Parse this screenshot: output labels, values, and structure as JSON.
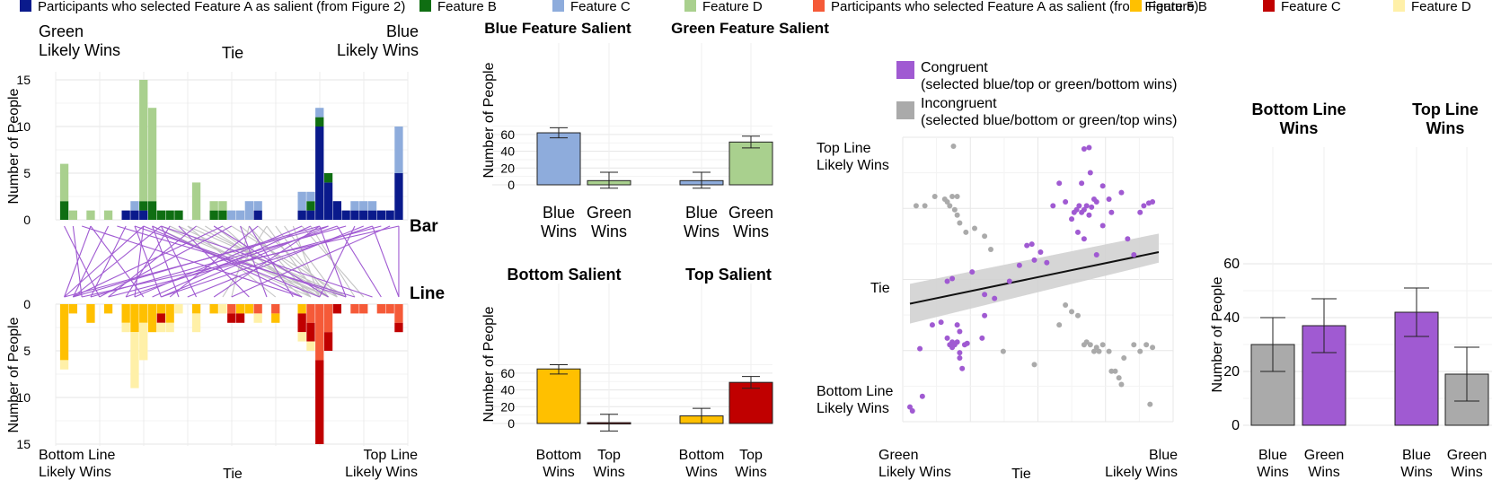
{
  "legend_top": {
    "items": [
      {
        "label": "Participants who selected Feature A as salient (from Figure 2)",
        "color": "#0a1a8c"
      },
      {
        "label": "Feature B",
        "color": "#0f6e12"
      },
      {
        "label": "Feature C",
        "color": "#8eacdc"
      },
      {
        "label": "Feature D",
        "color": "#a9d08e"
      },
      {
        "label": "Participants who selected Feature A as salient (from Figure 5)",
        "color": "#f55a38"
      },
      {
        "label": "Feature B",
        "color": "#ffc000"
      },
      {
        "label": "Feature C",
        "color": "#c00000"
      },
      {
        "label": "Feature D",
        "color": "#fff0a8"
      }
    ]
  },
  "chart_data": [
    {
      "id": "histogram-bar",
      "type": "bar",
      "stacked": true,
      "ylabel": "Number of People",
      "ylim": [
        0,
        15
      ],
      "yticks": [
        0,
        5,
        10,
        15
      ],
      "top_labels": [
        "Green\nLikely Wins",
        "Tie",
        "Blue\nLikely Wins"
      ],
      "side_label": "Bar",
      "positions": [
        1,
        2,
        4,
        6,
        8,
        9,
        10,
        11,
        12,
        13,
        14,
        16,
        18,
        19,
        20,
        21,
        22,
        23,
        25,
        28,
        29,
        30,
        31,
        32,
        33,
        34,
        35,
        36,
        37,
        38,
        39
      ],
      "series": [
        {
          "name": "Feature A",
          "color": "#0a1a8c",
          "values": [
            0,
            0,
            0,
            0,
            1,
            1,
            1,
            0,
            0,
            0,
            0,
            0,
            0,
            0,
            0,
            0,
            0,
            1,
            0,
            1,
            1,
            10,
            4,
            2,
            1,
            1,
            1,
            1,
            1,
            1,
            5
          ]
        },
        {
          "name": "Feature B",
          "color": "#0f6e12",
          "values": [
            2,
            0,
            0,
            0,
            0,
            0,
            1,
            2,
            1,
            1,
            1,
            0,
            1,
            1,
            0,
            0,
            0,
            0,
            0,
            0,
            1,
            1,
            1,
            0,
            0,
            0,
            0,
            0,
            0,
            0,
            0
          ]
        },
        {
          "name": "Feature C",
          "color": "#8eacdc",
          "values": [
            0,
            0,
            0,
            0,
            0,
            1,
            0,
            0,
            0,
            0,
            0,
            0,
            0,
            0,
            1,
            1,
            2,
            1,
            0,
            2,
            1,
            1,
            0,
            0,
            0,
            1,
            1,
            1,
            0,
            0,
            5
          ]
        },
        {
          "name": "Feature D",
          "color": "#a9d08e",
          "values": [
            4,
            1,
            1,
            1,
            0,
            0,
            13,
            10,
            0,
            0,
            0,
            4,
            1,
            1,
            0,
            0,
            0,
            0,
            0,
            0,
            0,
            0,
            0,
            0,
            0,
            0,
            0,
            0,
            0,
            0,
            0
          ]
        }
      ]
    },
    {
      "id": "histogram-line",
      "type": "bar",
      "stacked": true,
      "inverted": true,
      "ylabel": "Number of People",
      "ylim": [
        0,
        15
      ],
      "yticks": [
        0,
        5,
        10,
        15
      ],
      "bottom_labels": [
        "Bottom Line\nLikely Wins",
        "Tie",
        "Top Line\nLikely Wins"
      ],
      "side_label": "Line",
      "positions": [
        1,
        2,
        4,
        6,
        8,
        9,
        10,
        11,
        12,
        13,
        14,
        16,
        18,
        19,
        20,
        21,
        22,
        23,
        25,
        28,
        29,
        30,
        31,
        32,
        33,
        34,
        35,
        36,
        37,
        38,
        39
      ],
      "series": [
        {
          "name": "Feature A",
          "color": "#f55a38",
          "values": [
            0,
            0,
            0,
            0,
            0,
            0,
            0,
            0,
            0,
            0,
            0,
            0,
            0,
            0,
            1,
            0,
            0,
            1,
            1,
            0,
            2,
            6,
            3,
            0,
            0,
            1,
            1,
            0,
            1,
            1,
            2
          ]
        },
        {
          "name": "Feature B",
          "color": "#ffc000",
          "values": [
            6,
            1,
            2,
            1,
            2,
            3,
            2,
            3,
            1,
            2,
            0,
            1,
            1,
            0,
            0,
            1,
            1,
            0,
            1,
            1,
            0,
            0,
            0,
            0,
            0,
            0,
            0,
            0,
            0,
            0,
            0
          ]
        },
        {
          "name": "Feature C",
          "color": "#c00000",
          "values": [
            0,
            0,
            0,
            0,
            0,
            0,
            0,
            0,
            1,
            0,
            0,
            0,
            0,
            0,
            1,
            1,
            0,
            0,
            0,
            2,
            2,
            9,
            2,
            1,
            0,
            0,
            0,
            0,
            0,
            0,
            1
          ]
        },
        {
          "name": "Feature D",
          "color": "#fff0a8",
          "values": [
            1,
            0,
            0,
            0,
            1,
            6,
            4,
            0,
            1,
            1,
            1,
            2,
            0,
            1,
            0,
            0,
            0,
            1,
            0,
            1,
            1,
            0,
            0,
            0,
            0,
            0,
            0,
            0,
            0,
            0,
            0
          ]
        }
      ]
    },
    {
      "id": "bar-feature-salient",
      "type": "bar",
      "ylabel": "Number of People",
      "ylim": [
        0,
        70
      ],
      "yticks": [
        0,
        20,
        40,
        60
      ],
      "groups": [
        {
          "title": "Blue Feature Salient",
          "bars": [
            {
              "category": "Blue\nWins",
              "value": 62,
              "err_low": 56,
              "err_high": 68,
              "color": "#8eacdc"
            },
            {
              "category": "Green\nWins",
              "value": 5,
              "err_low": -4,
              "err_high": 15,
              "color": "#a9d08e"
            }
          ]
        },
        {
          "title": "Green Feature Salient",
          "bars": [
            {
              "category": "Blue\nWins",
              "value": 5,
              "err_low": -4,
              "err_high": 15,
              "color": "#8eacdc"
            },
            {
              "category": "Green\nWins",
              "value": 51,
              "err_low": 44,
              "err_high": 58,
              "color": "#a9d08e"
            }
          ]
        }
      ]
    },
    {
      "id": "bar-position-salient",
      "type": "bar",
      "ylabel": "Number of People",
      "ylim": [
        0,
        70
      ],
      "yticks": [
        0,
        20,
        40,
        60
      ],
      "groups": [
        {
          "title": "Bottom Salient",
          "bars": [
            {
              "category": "Bottom\nWins",
              "value": 65,
              "err_low": 59,
              "err_high": 70,
              "color": "#ffc000"
            },
            {
              "category": "Top\nWins",
              "value": 1,
              "err_low": -9,
              "err_high": 11,
              "color": "#7a1010"
            }
          ]
        },
        {
          "title": "Top Salient",
          "bars": [
            {
              "category": "Bottom\nWins",
              "value": 9,
              "err_low": 0,
              "err_high": 18,
              "color": "#ffc000"
            },
            {
              "category": "Top\nWins",
              "value": 49,
              "err_low": 42,
              "err_high": 56,
              "color": "#c00000"
            }
          ]
        }
      ]
    },
    {
      "id": "scatter-congruence",
      "type": "scatter",
      "legend": [
        {
          "label": "Congruent\n(selected blue/top or green/bottom wins)",
          "color": "#a05ad2"
        },
        {
          "label": "Incongruent\n(selected blue/bottom or green/top wins)",
          "color": "#aaaaaa"
        }
      ],
      "xlabels": [
        "Green\nLikely Wins",
        "Tie",
        "Blue\nLikely Wins"
      ],
      "ylabels": [
        "Top Line\nLikely Wins",
        "Tie",
        "Bottom Line\nLikely Wins"
      ],
      "xlim": [
        -1,
        1
      ],
      "ylim": [
        -1,
        1
      ],
      "trend": {
        "x": [
          -1,
          1
        ],
        "y": [
          -0.19,
          0.2
        ],
        "band_low": [
          -0.34,
          0.12
        ],
        "band_high": [
          -0.04,
          0.34
        ]
      },
      "points_congruent": [
        [
          -1,
          -0.97
        ],
        [
          -0.98,
          -1
        ],
        [
          -0.9,
          -0.89
        ],
        [
          -0.92,
          -0.53
        ],
        [
          -0.82,
          -0.35
        ],
        [
          -0.75,
          -0.33
        ],
        [
          -0.7,
          -0.45
        ],
        [
          -0.68,
          -0.5
        ],
        [
          -0.66,
          -0.52
        ],
        [
          -0.64,
          -0.5
        ],
        [
          -0.62,
          -0.48
        ],
        [
          -0.66,
          -0.48
        ],
        [
          -0.6,
          -0.56
        ],
        [
          -0.6,
          -0.6
        ],
        [
          -0.58,
          -0.68
        ],
        [
          -0.56,
          -0.5
        ],
        [
          -0.54,
          -0.49
        ],
        [
          -0.6,
          -0.4
        ],
        [
          -0.62,
          -0.35
        ],
        [
          -0.4,
          -0.28
        ],
        [
          -0.42,
          -0.45
        ],
        [
          -0.7,
          -0.02
        ],
        [
          -0.66,
          0.0
        ],
        [
          -0.5,
          0.05
        ],
        [
          -0.4,
          -0.12
        ],
        [
          -0.32,
          -0.15
        ],
        [
          -0.2,
          -0.02
        ],
        [
          -0.12,
          0.1
        ],
        [
          -0.06,
          0.25
        ],
        [
          -0.02,
          0.26
        ],
        [
          0.05,
          0.2
        ],
        [
          0.0,
          0.14
        ],
        [
          0.1,
          0.12
        ],
        [
          0.15,
          0.55
        ],
        [
          0.2,
          0.72
        ],
        [
          0.25,
          0.58
        ],
        [
          0.3,
          0.45
        ],
        [
          0.32,
          0.5
        ],
        [
          0.34,
          0.52
        ],
        [
          0.36,
          0.55
        ],
        [
          0.38,
          0.5
        ],
        [
          0.4,
          0.52
        ],
        [
          0.42,
          0.55
        ],
        [
          0.44,
          0.48
        ],
        [
          0.46,
          0.54
        ],
        [
          0.48,
          0.6
        ],
        [
          0.5,
          0.58
        ],
        [
          0.35,
          0.35
        ],
        [
          0.4,
          0.3
        ],
        [
          0.4,
          0.98
        ],
        [
          0.44,
          0.99
        ],
        [
          0.38,
          0.72
        ],
        [
          0.45,
          0.8
        ],
        [
          0.55,
          0.7
        ],
        [
          0.6,
          0.6
        ],
        [
          0.62,
          0.5
        ],
        [
          0.7,
          0.65
        ],
        [
          0.75,
          0.3
        ],
        [
          0.8,
          0.18
        ],
        [
          0.85,
          0.5
        ],
        [
          0.88,
          0.55
        ],
        [
          0.92,
          0.57
        ],
        [
          0.95,
          0.58
        ],
        [
          0.5,
          0.18
        ],
        [
          0.55,
          0.4
        ]
      ],
      "points_incongruent": [
        [
          -0.95,
          0.55
        ],
        [
          -0.88,
          0.55
        ],
        [
          -0.8,
          0.62
        ],
        [
          -0.72,
          0.6
        ],
        [
          -0.7,
          0.58
        ],
        [
          -0.68,
          0.55
        ],
        [
          -0.66,
          0.62
        ],
        [
          -0.64,
          0.52
        ],
        [
          -0.62,
          0.48
        ],
        [
          -0.6,
          0.42
        ],
        [
          -0.55,
          0.35
        ],
        [
          -0.48,
          0.38
        ],
        [
          -0.4,
          0.32
        ],
        [
          -0.35,
          0.22
        ],
        [
          -0.62,
          0.62
        ],
        [
          -0.65,
          1.0
        ],
        [
          0.3,
          -0.25
        ],
        [
          0.35,
          -0.28
        ],
        [
          0.4,
          -0.5
        ],
        [
          0.42,
          -0.48
        ],
        [
          0.45,
          -0.5
        ],
        [
          0.48,
          -0.55
        ],
        [
          0.5,
          -0.52
        ],
        [
          0.52,
          -0.55
        ],
        [
          0.55,
          -0.5
        ],
        [
          0.6,
          -0.55
        ],
        [
          0.62,
          -0.7
        ],
        [
          0.65,
          -0.7
        ],
        [
          0.68,
          -0.75
        ],
        [
          0.7,
          -0.8
        ],
        [
          0.72,
          -0.6
        ],
        [
          0.8,
          -0.5
        ],
        [
          0.85,
          -0.55
        ],
        [
          0.9,
          -0.5
        ],
        [
          0.95,
          -0.52
        ],
        [
          0.93,
          -0.95
        ],
        [
          0.2,
          -0.35
        ],
        [
          0.0,
          -0.65
        ],
        [
          -0.25,
          -0.55
        ],
        [
          0.25,
          -0.2
        ]
      ]
    },
    {
      "id": "bar-line-wins",
      "type": "bar",
      "ylabel": "Number of People",
      "ylim": [
        0,
        62
      ],
      "yticks": [
        0,
        20,
        40,
        60
      ],
      "groups": [
        {
          "title": "Bottom Line\nWins",
          "bars": [
            {
              "category": "Blue\nWins",
              "value": 30,
              "err_low": 20,
              "err_high": 40,
              "color": "#aaaaaa"
            },
            {
              "category": "Green\nWins",
              "value": 37,
              "err_low": 27,
              "err_high": 47,
              "color": "#a05ad2"
            }
          ]
        },
        {
          "title": "Top Line\nWins",
          "bars": [
            {
              "category": "Blue\nWins",
              "value": 42,
              "err_low": 33,
              "err_high": 51,
              "color": "#a05ad2"
            },
            {
              "category": "Green\nWins",
              "value": 19,
              "err_low": 9,
              "err_high": 29,
              "color": "#aaaaaa"
            }
          ]
        }
      ]
    }
  ]
}
